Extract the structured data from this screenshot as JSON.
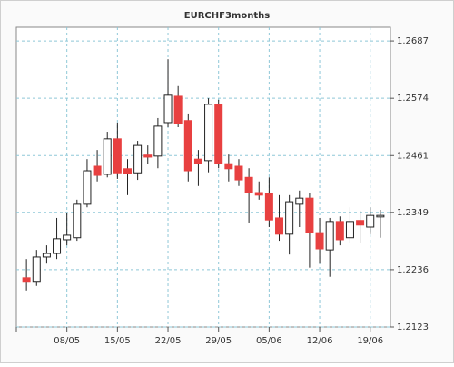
{
  "chart_data": {
    "type": "candlestick",
    "title": "EURCHF3months",
    "categories": [
      null,
      null,
      null,
      null,
      "08/05",
      null,
      null,
      null,
      null,
      "15/05",
      null,
      null,
      null,
      null,
      "22/05",
      null,
      null,
      null,
      null,
      "29/05",
      null,
      null,
      null,
      null,
      "05/06",
      null,
      null,
      null,
      null,
      "12/06",
      null,
      null,
      null,
      null,
      "19/06",
      null
    ],
    "series": [
      {
        "name": "open",
        "values": [
          1.222,
          1.2213,
          1.2261,
          1.2268,
          1.2295,
          1.2299,
          1.2365,
          1.244,
          1.2424,
          1.2494,
          1.2435,
          1.2427,
          1.2462,
          1.246,
          1.2526,
          1.2578,
          1.253,
          1.2454,
          1.2451,
          1.2562,
          1.2445,
          1.244,
          1.2418,
          1.2388,
          1.2386,
          1.2338,
          1.2306,
          1.2365,
          1.2377,
          1.2309,
          1.2275,
          1.2331,
          1.2299,
          1.2333,
          1.232,
          1.234
        ]
      },
      {
        "name": "high",
        "values": [
          1.2257,
          1.2275,
          1.2284,
          1.2338,
          1.2347,
          1.2374,
          1.2454,
          1.2472,
          1.2508,
          1.2526,
          1.2454,
          1.249,
          1.2481,
          1.2535,
          1.2651,
          1.2598,
          1.2544,
          1.2472,
          1.2574,
          1.2571,
          1.2463,
          1.2454,
          1.2436,
          1.241,
          1.2418,
          1.2383,
          1.2383,
          1.2392,
          1.2388,
          1.2338,
          1.2338,
          1.2341,
          1.2359,
          1.2352,
          1.2359,
          1.2354
        ]
      },
      {
        "name": "low",
        "values": [
          1.2195,
          1.2204,
          1.2248,
          1.2257,
          1.2284,
          1.2293,
          1.2359,
          1.241,
          1.2418,
          1.2415,
          1.2383,
          1.2413,
          1.2445,
          1.2436,
          1.2517,
          1.2517,
          1.241,
          1.2401,
          1.2428,
          1.2436,
          1.241,
          1.2401,
          1.2329,
          1.2374,
          1.232,
          1.2293,
          1.2266,
          1.232,
          1.224,
          1.2248,
          1.2222,
          1.2284,
          1.2288,
          1.2288,
          1.2306,
          1.2299
        ]
      },
      {
        "name": "close",
        "values": [
          1.2213,
          1.2261,
          1.2268,
          1.2297,
          1.2304,
          1.2365,
          1.2431,
          1.2422,
          1.2494,
          1.2427,
          1.2426,
          1.2481,
          1.2458,
          1.2519,
          1.258,
          1.2524,
          1.2431,
          1.2445,
          1.2562,
          1.2445,
          1.2435,
          1.2413,
          1.2388,
          1.2383,
          1.2334,
          1.2306,
          1.237,
          1.2377,
          1.2309,
          1.2277,
          1.2331,
          1.2295,
          1.2331,
          1.2324,
          1.2343,
          1.2343
        ]
      }
    ],
    "up_color": "#ffffff",
    "down_color": "#e84040",
    "ylim": [
      1.2123,
      1.2714
    ],
    "yticks": [
      1.2123,
      1.2236,
      1.2349,
      1.2461,
      1.2574,
      1.2687
    ],
    "grid": true
  }
}
